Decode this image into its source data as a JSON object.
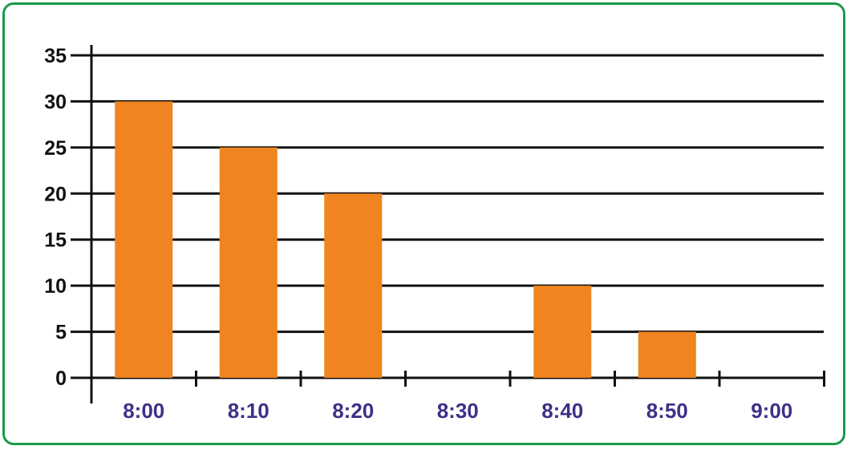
{
  "chart_data": {
    "type": "bar",
    "categories": [
      "8:00",
      "8:10",
      "8:20",
      "8:30",
      "8:40",
      "8:50",
      "9:00"
    ],
    "values": [
      30,
      25,
      20,
      0,
      10,
      5,
      0
    ],
    "ylim": [
      0,
      35
    ],
    "yticks": [
      0,
      5,
      10,
      15,
      20,
      25,
      30,
      35
    ],
    "grid": true,
    "title": "",
    "xlabel": "",
    "ylabel": "",
    "colors": {
      "bar": "#ef8420",
      "gridline": "#111111",
      "xtick_label": "#3c3188",
      "ytick_label": "#111111",
      "frame_border": "#1a9a4a"
    }
  }
}
